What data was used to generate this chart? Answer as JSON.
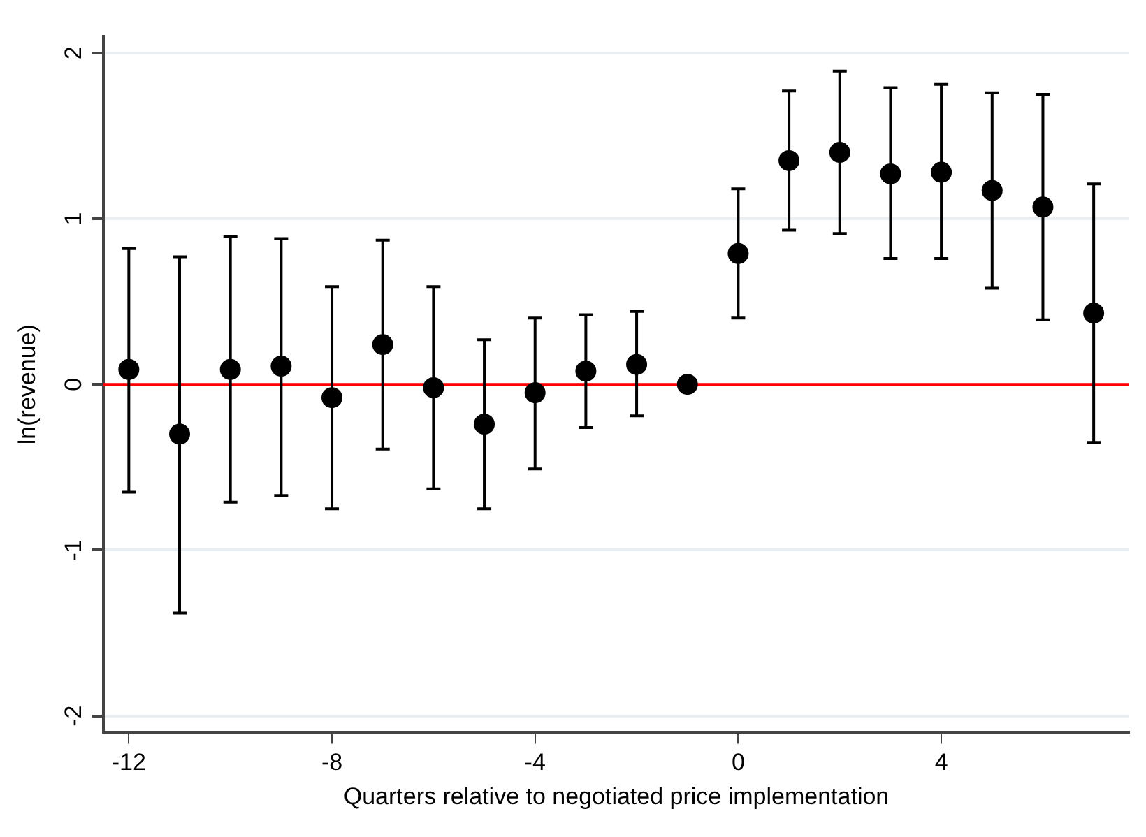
{
  "chart_data": {
    "type": "scatter",
    "xlabel": "Quarters relative to negotiated price implementation",
    "ylabel": "ln(revenue)",
    "x": [
      -12,
      -11,
      -10,
      -9,
      -8,
      -7,
      -6,
      -5,
      -4,
      -3,
      -2,
      -1,
      0,
      1,
      2,
      3,
      4,
      5,
      6,
      7
    ],
    "series": [
      {
        "color": "#000000",
        "values": [
          0.09,
          -0.3,
          0.09,
          0.11,
          -0.08,
          0.24,
          -0.02,
          -0.24,
          -0.05,
          0.08,
          0.12,
          0,
          0.79,
          1.35,
          1.4,
          1.27,
          1.28,
          1.17,
          1.07,
          0.43
        ],
        "errors": [
          [
            -0.65,
            0.82
          ],
          [
            -1.38,
            0.77
          ],
          [
            -0.71,
            0.89
          ],
          [
            -0.67,
            0.88
          ],
          [
            -0.75,
            0.59
          ],
          [
            -0.39,
            0.87
          ],
          [
            -0.63,
            0.59
          ],
          [
            -0.75,
            0.27
          ],
          [
            -0.51,
            0.4
          ],
          [
            -0.26,
            0.42
          ],
          [
            -0.19,
            0.44
          ],
          null,
          [
            0.4,
            1.18
          ],
          [
            0.93,
            1.77
          ],
          [
            0.91,
            1.89
          ],
          [
            0.76,
            1.79
          ],
          [
            0.76,
            1.81
          ],
          [
            0.58,
            1.76
          ],
          [
            0.39,
            1.75
          ],
          [
            -0.35,
            1.21
          ]
        ]
      }
    ],
    "xlim": [
      -12.5,
      7.7
    ],
    "xticks": [
      -12,
      -8,
      -4,
      0,
      4
    ],
    "ylim": [
      -2.1,
      2.1
    ],
    "yticks": [
      -2,
      -1,
      0,
      1,
      2
    ],
    "ref_lines": [
      {
        "axis": "y",
        "value": 0,
        "color": "#ff0000"
      }
    ],
    "grid": "y",
    "marker": "circle",
    "legend": false
  }
}
